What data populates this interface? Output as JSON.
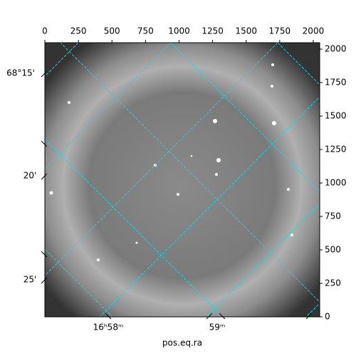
{
  "chart_data": {
    "type": "image",
    "xlabel": "pos.eq.ra",
    "xlim": [
      0,
      2048
    ],
    "xticks": [
      0,
      250,
      500,
      750,
      1000,
      1250,
      1500,
      1750,
      2000
    ],
    "ylim": [
      0,
      2048
    ],
    "yticks": [
      0,
      250,
      500,
      750,
      1000,
      1250,
      1500,
      1750,
      2000
    ],
    "ra_labels": [
      "16ʰ58ᵐ",
      "59ᵐ"
    ],
    "dec_labels": [
      "68°15'",
      "20'",
      "25'"
    ],
    "grid_color": "#00e5e5"
  }
}
